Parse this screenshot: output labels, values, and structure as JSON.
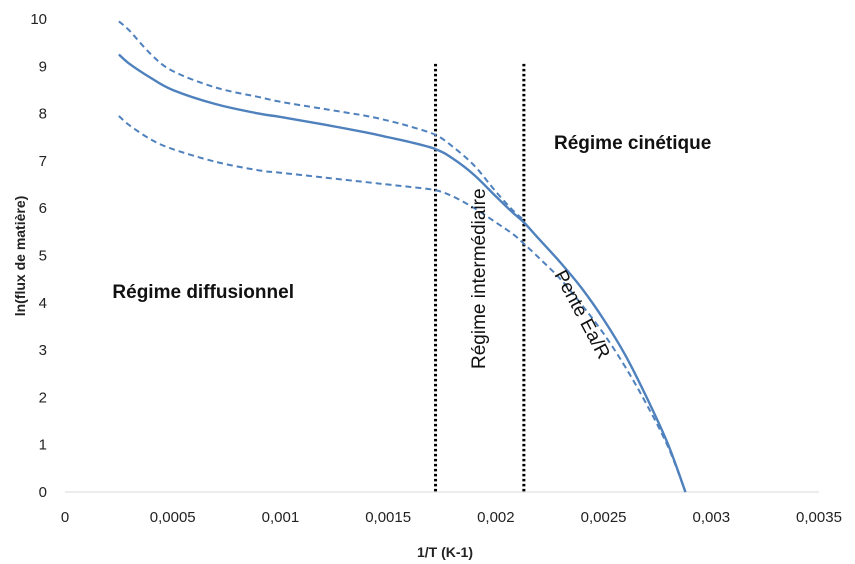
{
  "chart_data": {
    "type": "line",
    "xlabel": "1/T (K-1)",
    "ylabel": "ln(flux de matière)",
    "xlim": [
      0,
      0.0035
    ],
    "ylim": [
      0,
      10
    ],
    "x_ticks": [
      0,
      0.0005,
      0.001,
      0.0015,
      0.002,
      0.0025,
      0.003,
      0.0035
    ],
    "x_tick_labels": [
      "0",
      "0,0005",
      "0,001",
      "0,0015",
      "0,002",
      "0,0025",
      "0,003",
      "0,0035"
    ],
    "y_ticks": [
      0,
      1,
      2,
      3,
      4,
      5,
      6,
      7,
      8,
      9,
      10
    ],
    "y_tick_labels": [
      "0",
      "1",
      "2",
      "3",
      "4",
      "5",
      "6",
      "7",
      "8",
      "9",
      "10"
    ],
    "grid": false,
    "series": [
      {
        "style": "solid",
        "color": "#4F81BD",
        "x": [
          0.00025,
          0.0003,
          0.0004,
          0.0005,
          0.0007,
          0.0009,
          0.001,
          0.0012,
          0.0014,
          0.0015,
          0.0016,
          0.00172,
          0.0018,
          0.0019,
          0.002,
          0.00208,
          0.00213,
          0.0022,
          0.0023,
          0.0024,
          0.0025,
          0.0026,
          0.0027,
          0.0028,
          0.00288
        ],
        "y": [
          9.25,
          9.05,
          8.75,
          8.5,
          8.2,
          8.0,
          7.93,
          7.77,
          7.6,
          7.5,
          7.4,
          7.25,
          7.05,
          6.7,
          6.25,
          5.9,
          5.7,
          5.35,
          4.85,
          4.3,
          3.65,
          2.9,
          2.0,
          1.0,
          0.0
        ]
      },
      {
        "style": "dashed",
        "color": "#4F81BD",
        "x": [
          0.00025,
          0.0003,
          0.0004,
          0.0005,
          0.0007,
          0.0009,
          0.001,
          0.0012,
          0.0014,
          0.0015,
          0.0016,
          0.00172,
          0.0018,
          0.0019,
          0.002,
          0.00208,
          0.00213
        ],
        "y": [
          9.95,
          9.75,
          9.25,
          8.9,
          8.55,
          8.35,
          8.25,
          8.1,
          7.95,
          7.85,
          7.73,
          7.55,
          7.3,
          6.9,
          6.35,
          5.95,
          5.75
        ]
      },
      {
        "style": "dashed",
        "color": "#4F81BD",
        "x": [
          0.00025,
          0.0003,
          0.0004,
          0.0005,
          0.0007,
          0.0009,
          0.001,
          0.0012,
          0.0014,
          0.0015,
          0.0016,
          0.00172,
          0.0018,
          0.0019,
          0.002,
          0.00208,
          0.00213,
          0.0022,
          0.0023,
          0.0024,
          0.0025,
          0.0026,
          0.0027,
          0.0028,
          0.00288
        ],
        "y": [
          7.95,
          7.75,
          7.45,
          7.25,
          6.98,
          6.8,
          6.75,
          6.65,
          6.55,
          6.5,
          6.45,
          6.38,
          6.25,
          6.0,
          5.7,
          5.45,
          5.25,
          4.95,
          4.5,
          3.95,
          3.35,
          2.65,
          1.85,
          0.95,
          0.0
        ]
      }
    ],
    "vertical_lines": [
      {
        "x": 0.00172,
        "style": "dotted",
        "color": "#000000"
      },
      {
        "x": 0.00213,
        "style": "dotted",
        "color": "#000000"
      }
    ],
    "annotations": {
      "diffusion": {
        "text": "Régime diffusionnel",
        "x": 0.00022,
        "y": 4.1,
        "bold": true,
        "rotation": 0
      },
      "intermediate": {
        "text": "Régime intermédiaire",
        "x": 0.00195,
        "y": 2.6,
        "bold": false,
        "rotation": -90
      },
      "kinetic": {
        "text": "Régime cinétique",
        "x": 0.00227,
        "y": 7.25,
        "bold": true,
        "rotation": 0
      },
      "slope": {
        "text": "Pente Ea/R",
        "x": 0.00227,
        "y": 4.6,
        "bold": false,
        "rotation": 62
      }
    }
  }
}
